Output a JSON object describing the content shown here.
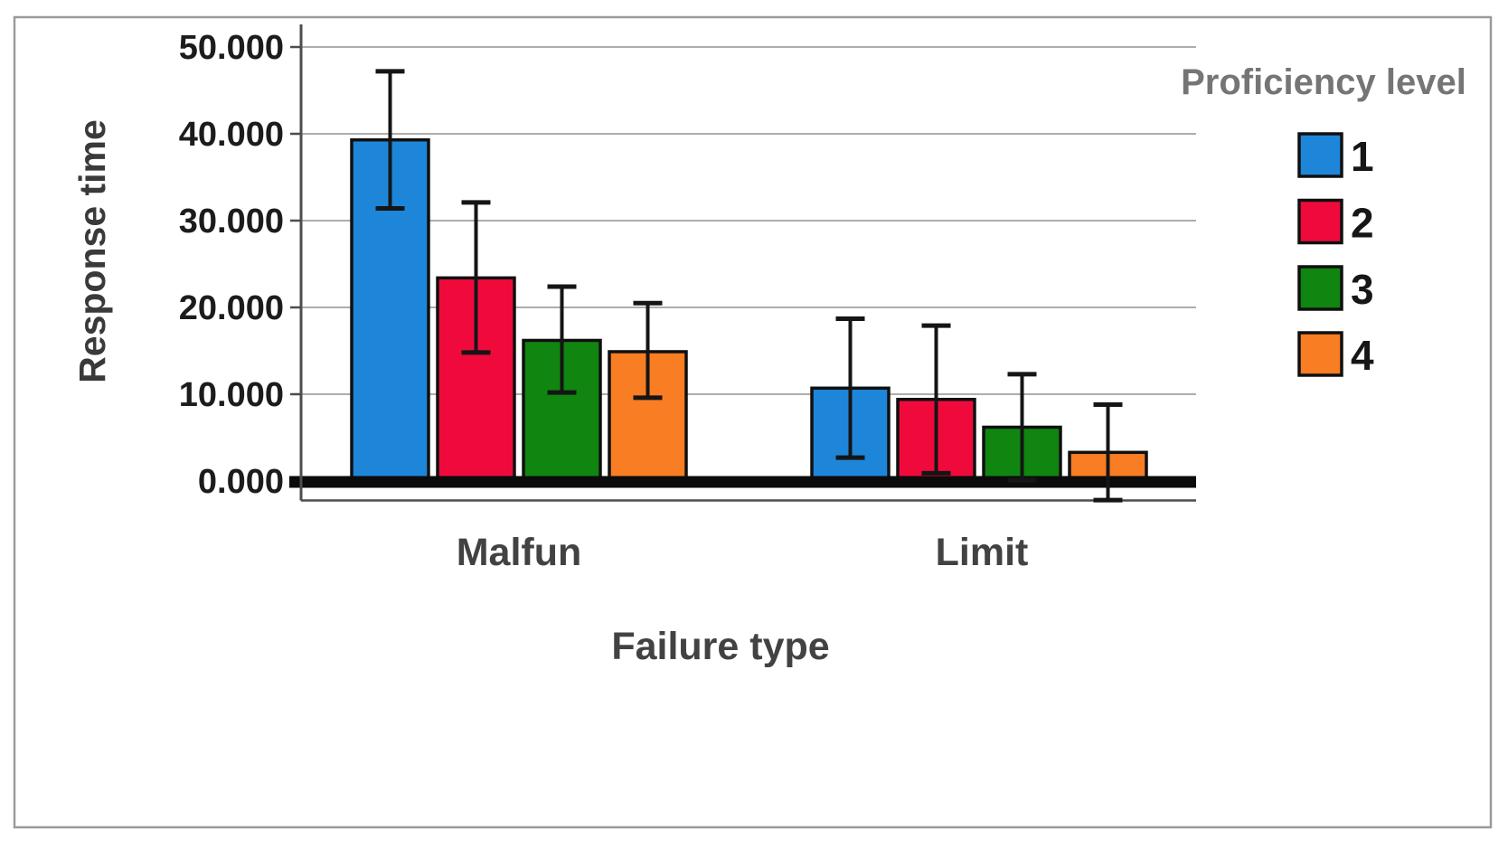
{
  "chart_data": {
    "type": "bar",
    "title": "",
    "categories": [
      "Malfun",
      "Limit"
    ],
    "series": [
      {
        "name": "1",
        "color": "#1E86D9",
        "values": [
          39300,
          10700
        ],
        "error_high": [
          47200,
          18700
        ],
        "error_low": [
          31400,
          2700
        ]
      },
      {
        "name": "2",
        "color": "#F00A3C",
        "values": [
          23400,
          9400
        ],
        "error_high": [
          32100,
          17900
        ],
        "error_low": [
          14800,
          900
        ]
      },
      {
        "name": "3",
        "color": "#108510",
        "values": [
          16200,
          6200
        ],
        "error_high": [
          22400,
          12300
        ],
        "error_low": [
          10200,
          100
        ]
      },
      {
        "name": "4",
        "color": "#F87D23",
        "values": [
          14900,
          3300
        ],
        "error_high": [
          20500,
          8800
        ],
        "error_low": [
          9600,
          -2200
        ]
      }
    ],
    "xlabel": "Failure type",
    "ylabel": "Response time",
    "ylim": [
      0,
      50000
    ],
    "ytick_values": [
      0,
      10000,
      20000,
      30000,
      40000,
      50000
    ],
    "ytick_labels": [
      "0.000",
      "10.000",
      "20.000",
      "30.000",
      "40.000",
      "50.000"
    ],
    "grid": true,
    "error_bars": true,
    "legend": {
      "title": "Proficiency level",
      "position": "top-right",
      "entries": [
        {
          "label": "1",
          "color": "#1E86D9"
        },
        {
          "label": "2",
          "color": "#F00A3C"
        },
        {
          "label": "3",
          "color": "#108510"
        },
        {
          "label": "4",
          "color": "#F87D23"
        }
      ]
    }
  },
  "colors": {
    "background": "#ffffff",
    "outer_border": "#9a9a9a",
    "gridline": "#adadad",
    "axis_line": "#4d4d4d",
    "zero_line": "#0b0b0b",
    "bar_outline": "#101010",
    "error_bar": "#151515",
    "tick_label": "#1c1c1c",
    "category_label": "#424242",
    "axis_title": "#3a3a3a",
    "legend_title": "#757575",
    "legend_label": "#161616"
  }
}
